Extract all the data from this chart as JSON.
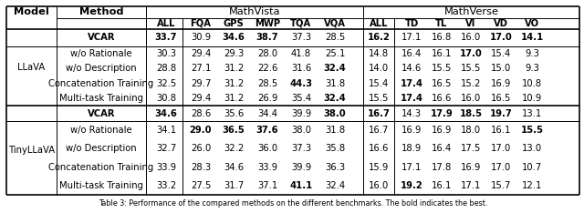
{
  "caption": "Table 3: Performance of the compared methods on the different benchmarks. The bold indicates the best.",
  "col_labels": [
    "ALL",
    "FQA",
    "GPS",
    "MWP",
    "TQA",
    "VQA",
    "ALL",
    "TD",
    "TL",
    "VI",
    "VD",
    "VO"
  ],
  "rows": [
    {
      "method": "VCAR",
      "values": [
        "33.7",
        "30.9",
        "34.6",
        "38.7",
        "37.3",
        "28.5",
        "16.2",
        "17.1",
        "16.8",
        "16.0",
        "17.0",
        "14.1"
      ],
      "bold": [
        true,
        false,
        true,
        true,
        false,
        false,
        true,
        false,
        false,
        false,
        true,
        true
      ],
      "is_vcar": true,
      "model": "llava"
    },
    {
      "method": "w/o Rationale",
      "values": [
        "30.3",
        "29.4",
        "29.3",
        "28.0",
        "41.8",
        "25.1",
        "14.8",
        "16.4",
        "16.1",
        "17.0",
        "15.4",
        "9.3"
      ],
      "bold": [
        false,
        false,
        false,
        false,
        false,
        false,
        false,
        false,
        false,
        true,
        false,
        false
      ],
      "is_vcar": false,
      "model": "llava"
    },
    {
      "method": "w/o Description",
      "values": [
        "28.8",
        "27.1",
        "31.2",
        "22.6",
        "31.6",
        "32.4",
        "14.0",
        "14.6",
        "15.5",
        "15.5",
        "15.0",
        "9.3"
      ],
      "bold": [
        false,
        false,
        false,
        false,
        false,
        true,
        false,
        false,
        false,
        false,
        false,
        false
      ],
      "is_vcar": false,
      "model": "llava"
    },
    {
      "method": "Concatenation Training",
      "values": [
        "32.5",
        "29.7",
        "31.2",
        "28.5",
        "44.3",
        "31.8",
        "15.4",
        "17.4",
        "16.5",
        "15.2",
        "16.9",
        "10.8"
      ],
      "bold": [
        false,
        false,
        false,
        false,
        true,
        false,
        false,
        true,
        false,
        false,
        false,
        false
      ],
      "is_vcar": false,
      "model": "llava"
    },
    {
      "method": "Multi-task Training",
      "values": [
        "30.8",
        "29.4",
        "31.2",
        "26.9",
        "35.4",
        "32.4",
        "15.5",
        "17.4",
        "16.6",
        "16.0",
        "16.5",
        "10.9"
      ],
      "bold": [
        false,
        false,
        false,
        false,
        false,
        true,
        false,
        true,
        false,
        false,
        false,
        false
      ],
      "is_vcar": false,
      "model": "llava"
    },
    {
      "method": "VCAR",
      "values": [
        "34.6",
        "28.6",
        "35.6",
        "34.4",
        "39.9",
        "38.0",
        "16.7",
        "14.3",
        "17.9",
        "18.5",
        "19.7",
        "13.1"
      ],
      "bold": [
        true,
        false,
        false,
        false,
        false,
        true,
        true,
        false,
        true,
        true,
        true,
        false
      ],
      "is_vcar": true,
      "model": "tiny"
    },
    {
      "method": "w/o Rationale",
      "values": [
        "34.1",
        "29.0",
        "36.5",
        "37.6",
        "38.0",
        "31.8",
        "16.7",
        "16.9",
        "16.9",
        "18.0",
        "16.1",
        "15.5"
      ],
      "bold": [
        false,
        true,
        true,
        true,
        false,
        false,
        false,
        false,
        false,
        false,
        false,
        true
      ],
      "is_vcar": false,
      "model": "tiny"
    },
    {
      "method": "w/o Description",
      "values": [
        "32.7",
        "26.0",
        "32.2",
        "36.0",
        "37.3",
        "35.8",
        "16.6",
        "18.9",
        "16.4",
        "17.5",
        "17.0",
        "13.0"
      ],
      "bold": [
        false,
        false,
        false,
        false,
        false,
        false,
        false,
        false,
        false,
        false,
        false,
        false
      ],
      "is_vcar": false,
      "model": "tiny"
    },
    {
      "method": "Concatenation Training",
      "values": [
        "33.9",
        "28.3",
        "34.6",
        "33.9",
        "39.9",
        "36.3",
        "15.9",
        "17.1",
        "17.8",
        "16.9",
        "17.0",
        "10.7"
      ],
      "bold": [
        false,
        false,
        false,
        false,
        false,
        false,
        false,
        false,
        false,
        false,
        false,
        false
      ],
      "is_vcar": false,
      "model": "tiny"
    },
    {
      "method": "Multi-task Training",
      "values": [
        "33.2",
        "27.5",
        "31.7",
        "37.1",
        "41.1",
        "32.4",
        "16.0",
        "19.2",
        "16.1",
        "17.1",
        "15.7",
        "12.1"
      ],
      "bold": [
        false,
        false,
        false,
        false,
        true,
        false,
        false,
        true,
        false,
        false,
        false,
        false
      ],
      "is_vcar": false,
      "model": "tiny"
    }
  ],
  "bg_color": "#ffffff"
}
